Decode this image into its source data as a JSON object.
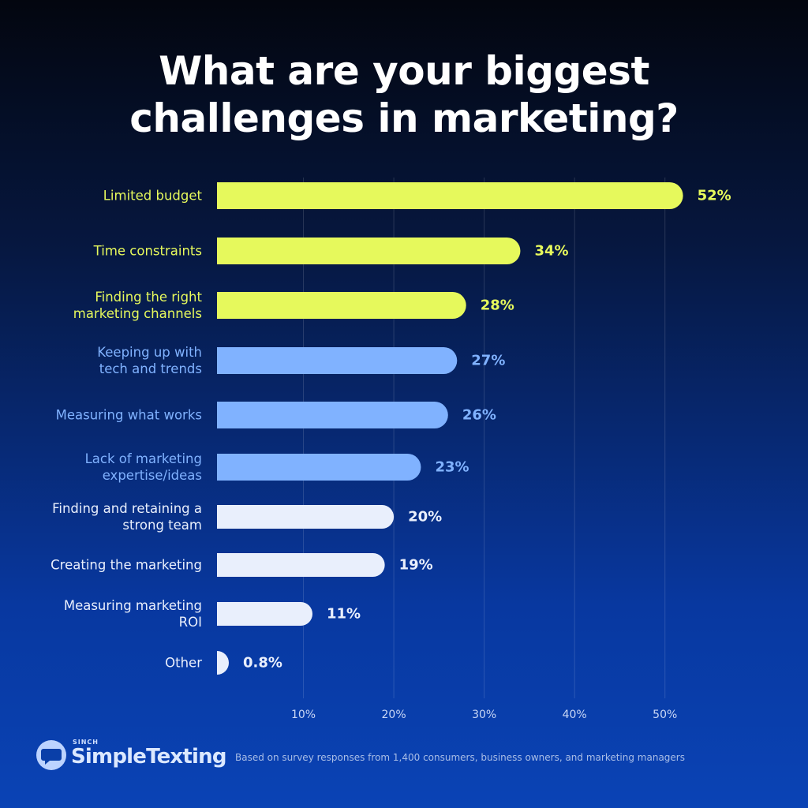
{
  "chart_data": {
    "type": "hbar",
    "title": "What are your biggest challenges in marketing?",
    "categories": [
      "Limited budget",
      "Time constraints",
      "Finding the right\nmarketing channels",
      "Keeping up with\ntech and trends",
      "Measuring what works",
      "Lack of marketing\nexpertise/ideas",
      "Finding and retaining a\nstrong team",
      "Creating the marketing",
      "Measuring marketing\nROI",
      "Other"
    ],
    "values": [
      52,
      34,
      28,
      27,
      26,
      23,
      20,
      19,
      11,
      0.8
    ],
    "value_labels": [
      "52%",
      "34%",
      "28%",
      "27%",
      "26%",
      "23%",
      "20%",
      "19%",
      "11%",
      "0.8%"
    ],
    "colors": [
      "#e6f95c",
      "#e6f95c",
      "#e6f95c",
      "#80b2ff",
      "#80b2ff",
      "#80b2ff",
      "#e9effc",
      "#e9effc",
      "#e9effc",
      "#e9effc"
    ],
    "xlim": [
      0,
      55
    ],
    "xticks": [
      {
        "value": 10,
        "label": "10%"
      },
      {
        "value": 20,
        "label": "20%"
      },
      {
        "value": 30,
        "label": "30%"
      },
      {
        "value": 40,
        "label": "40%"
      },
      {
        "value": 50,
        "label": "50%"
      }
    ],
    "grid": true
  },
  "footer": {
    "brand_small": "SINCH",
    "brand": "SimpleTexting",
    "note": "Based on survey responses from 1,400 consumers, business owners, and marketing managers"
  }
}
